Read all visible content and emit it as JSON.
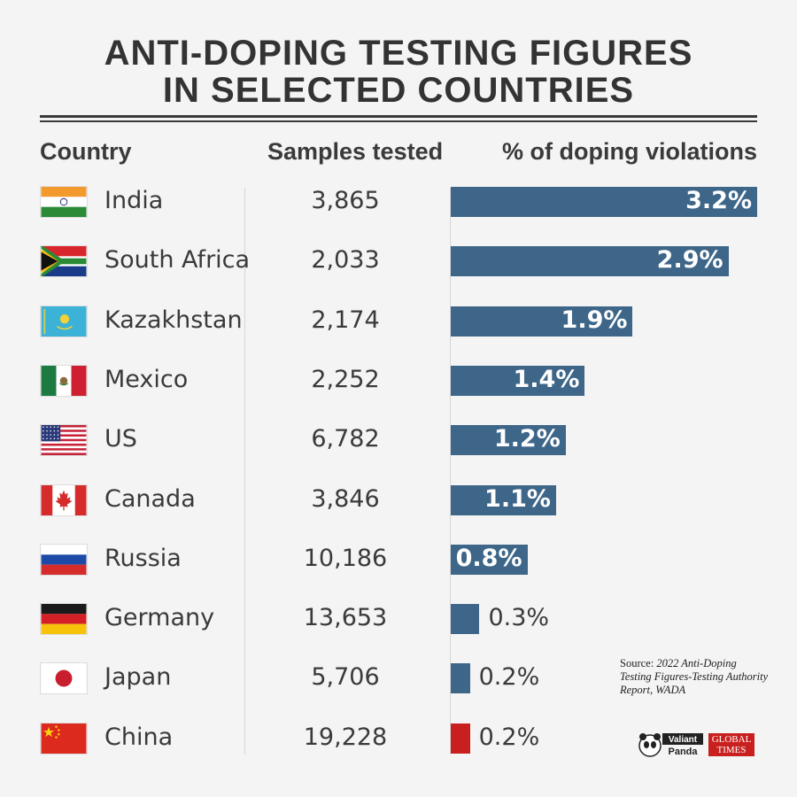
{
  "title_line1": "ANTI-DOPING TESTING FIGURES",
  "title_line2": "IN SELECTED COUNTRIES",
  "headers": {
    "country": "Country",
    "samples": "Samples tested",
    "percent": "% of doping violations"
  },
  "source": {
    "prefix": "Source:",
    "text": "2022 Anti-Doping Testing Figures-Testing Authority Report, WADA"
  },
  "logos": {
    "valiant_1": "Valiant",
    "valiant_2": "Panda",
    "global_times_1": "GLOBAL",
    "global_times_2": "TIMES"
  },
  "colors": {
    "bar": "#3e6689",
    "highlight": "#c8201f"
  },
  "chart_data": {
    "type": "bar",
    "title": "ANTI-DOPING TESTING FIGURES IN SELECTED COUNTRIES",
    "categories": [
      "India",
      "South Africa",
      "Kazakhstan",
      "Mexico",
      "US",
      "Canada",
      "Russia",
      "Germany",
      "Japan",
      "China"
    ],
    "series": [
      {
        "name": "Samples tested",
        "values": [
          3865,
          2033,
          2174,
          2252,
          6782,
          3846,
          10186,
          13653,
          5706,
          19228
        ]
      },
      {
        "name": "% of doping violations",
        "values": [
          3.2,
          2.9,
          1.9,
          1.4,
          1.2,
          1.1,
          0.8,
          0.3,
          0.2,
          0.2
        ]
      }
    ],
    "samples_labels": [
      "3,865",
      "2,033",
      "2,174",
      "2,252",
      "6,782",
      "3,846",
      "10,186",
      "13,653",
      "5,706",
      "19,228"
    ],
    "percent_labels": [
      "3.2%",
      "2.9%",
      "1.9%",
      "1.4%",
      "1.2%",
      "1.1%",
      "0.8%",
      "0.3%",
      "0.2%",
      "0.2%"
    ],
    "flags": [
      "india-flag",
      "south-africa-flag",
      "kazakhstan-flag",
      "mexico-flag",
      "us-flag",
      "canada-flag",
      "russia-flag",
      "germany-flag",
      "japan-flag",
      "china-flag"
    ],
    "highlight_category": "China",
    "orientation": "horizontal",
    "xlim": [
      0,
      3.2
    ]
  }
}
